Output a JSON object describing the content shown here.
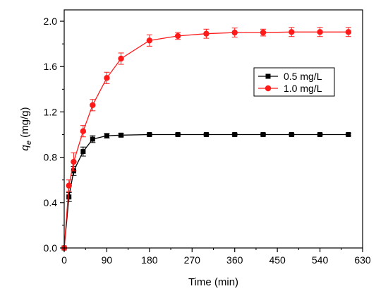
{
  "chart_data": {
    "type": "line",
    "xlabel": "Time (min)",
    "ylabel_main": "q",
    "ylabel_sub": "e",
    "ylabel_unit": " (mg/g)",
    "xlim": [
      0,
      630
    ],
    "ylim": [
      0.0,
      2.1
    ],
    "xticks": [
      0,
      90,
      180,
      270,
      360,
      450,
      540,
      630
    ],
    "yticks": [
      0.0,
      0.4,
      0.8,
      1.2,
      1.6,
      2.0
    ],
    "ytick_labels": [
      "0.0",
      "0.4",
      "0.8",
      "1.2",
      "1.6",
      "2.0"
    ],
    "grid": false,
    "legend_position": "center-right",
    "series": [
      {
        "name": "0.5 mg/L",
        "color": "#000000",
        "marker": "square",
        "x": [
          0,
          10,
          20,
          40,
          60,
          90,
          120,
          180,
          240,
          300,
          360,
          420,
          480,
          540,
          600
        ],
        "y": [
          0.0,
          0.45,
          0.68,
          0.85,
          0.96,
          0.99,
          0.995,
          1.0,
          1.0,
          1.0,
          1.0,
          1.0,
          1.0,
          1.0,
          1.0
        ],
        "err": [
          0,
          0.04,
          0.04,
          0.04,
          0.03,
          0.02,
          0.015,
          0.01,
          0.01,
          0.01,
          0.01,
          0.01,
          0.01,
          0.01,
          0.01
        ]
      },
      {
        "name": "1.0 mg/L",
        "color": "#ff1a1a",
        "marker": "circle",
        "x": [
          0,
          10,
          20,
          40,
          60,
          90,
          120,
          180,
          240,
          300,
          360,
          420,
          480,
          540,
          600
        ],
        "y": [
          0.0,
          0.55,
          0.76,
          1.03,
          1.26,
          1.5,
          1.67,
          1.83,
          1.87,
          1.89,
          1.9,
          1.9,
          1.905,
          1.905,
          1.905
        ],
        "err": [
          0,
          0.05,
          0.08,
          0.05,
          0.05,
          0.05,
          0.05,
          0.05,
          0.03,
          0.04,
          0.04,
          0.03,
          0.04,
          0.04,
          0.04
        ]
      }
    ]
  }
}
